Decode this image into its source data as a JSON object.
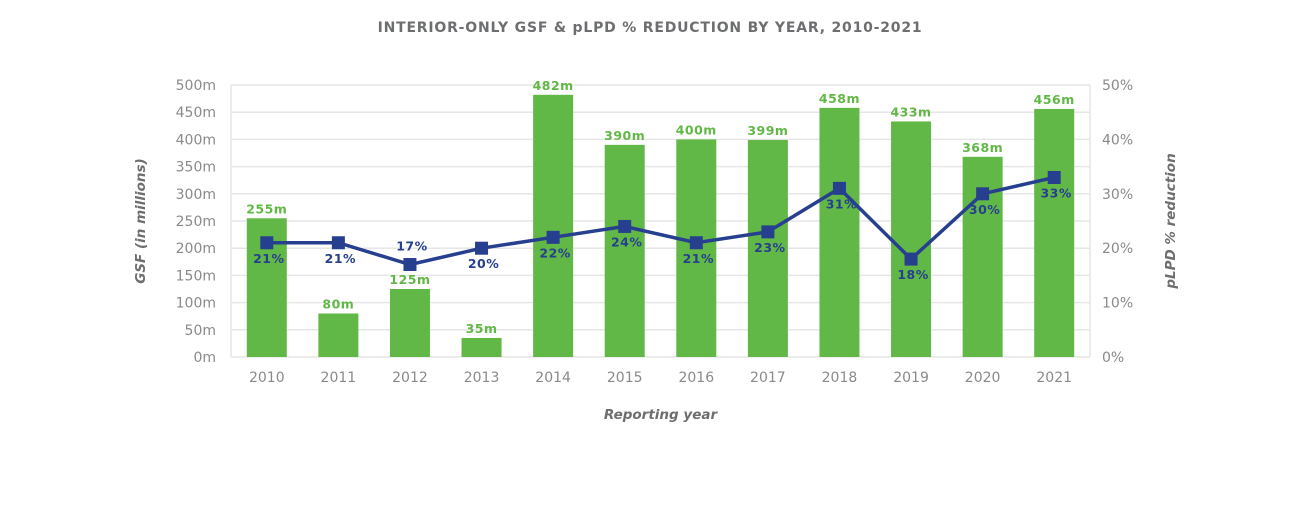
{
  "chart_data": {
    "type": "bar+line",
    "title": "INTERIOR-ONLY GSF & pLPD % REDUCTION BY YEAR, 2010-2021",
    "xlabel": "Reporting year",
    "ylabel": "GSF (in millions)",
    "y2label": "pLPD % reduction",
    "categories": [
      "2010",
      "2011",
      "2012",
      "2013",
      "2014",
      "2015",
      "2016",
      "2017",
      "2018",
      "2019",
      "2020",
      "2021"
    ],
    "ylim": [
      0,
      500
    ],
    "y2lim": [
      0,
      50
    ],
    "yticks": [
      "0m",
      "50m",
      "100m",
      "150m",
      "200m",
      "250m",
      "300m",
      "350m",
      "400m",
      "450m",
      "500m"
    ],
    "y2ticks": [
      "0%",
      "10%",
      "20%",
      "30%",
      "40%",
      "50%"
    ],
    "grid": true,
    "series": [
      {
        "type": "bar",
        "axis": "left",
        "color": "#62b846",
        "values": [
          255,
          80,
          125,
          35,
          482,
          390,
          400,
          399,
          458,
          433,
          368,
          456
        ],
        "labels": [
          "255m",
          "80m",
          "125m",
          "35m",
          "482m",
          "390m",
          "400m",
          "399m",
          "458m",
          "433m",
          "368m",
          "456m"
        ]
      },
      {
        "type": "line",
        "axis": "right",
        "color": "#263f8f",
        "marker": "square",
        "values": [
          21,
          21,
          17,
          20,
          22,
          24,
          21,
          23,
          31,
          18,
          30,
          33
        ],
        "labels": [
          "21%",
          "21%",
          "17%",
          "20%",
          "22%",
          "24%",
          "21%",
          "23%",
          "31%",
          "18%",
          "30%",
          "33%"
        ]
      }
    ]
  }
}
